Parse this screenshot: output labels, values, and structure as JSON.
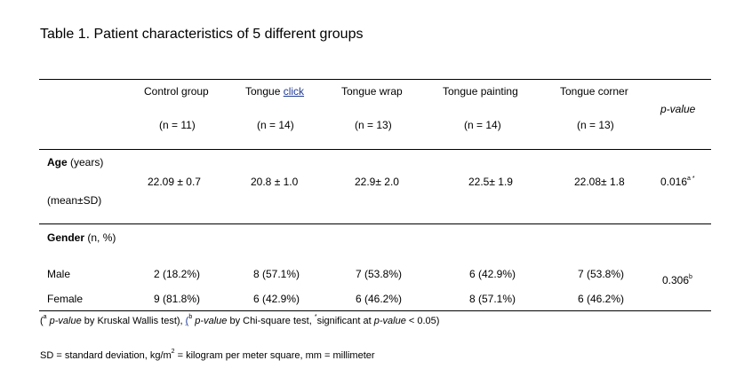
{
  "title": "Table 1. Patient characteristics of 5 different groups",
  "columns": [
    {
      "name_a": "Control group",
      "name_b": "",
      "n": "(n = 11)"
    },
    {
      "name_a": "Tongue ",
      "name_b": "click",
      "n": "(n = 14)"
    },
    {
      "name_a": "Tongue wrap",
      "name_b": "",
      "n": "(n = 13)"
    },
    {
      "name_a": "Tongue painting",
      "name_b": "",
      "n": "(n = 14)"
    },
    {
      "name_a": "Tongue corner",
      "name_b": "",
      "n": "(n = 13)"
    }
  ],
  "pvalue_header": "p-value",
  "age": {
    "label_bold": "Age",
    "label_rest": " (years)",
    "sublabel": "(mean±SD)",
    "values": [
      "22.09 ± 0.7",
      "20.8 ± 1.0",
      "22.9± 2.0",
      "22.5± 1.9",
      "22.08± 1.8"
    ],
    "pvalue": "0.016",
    "pvalue_sup": "a *"
  },
  "gender": {
    "label_bold": "Gender",
    "label_rest": " (n, %)",
    "rows": [
      {
        "label": "Male",
        "values": [
          "2 (18.2%)",
          "8 (57.1%)",
          "7 (53.8%)",
          "6 (42.9%)",
          "7 (53.8%)"
        ]
      },
      {
        "label": "Female",
        "values": [
          "9 (81.8%)",
          "6 (42.9%)",
          "6 (46.2%)",
          "8 (57.1%)",
          "6 (46.2%)"
        ]
      }
    ],
    "pvalue": "0.306",
    "pvalue_sup": "b"
  },
  "footnote": {
    "p1_open": "(",
    "p1_sup": "a",
    "p1_italic": " p-value",
    "p1_text": " by Kruskal Wallis test), ",
    "p2_link": "(",
    "p2_sup": "b",
    "p2_italic": " p-value",
    "p2_text": " by Chi-square test, ",
    "p3_sup": "*",
    "p3_text": "significant at ",
    "p3_italic": "p-value",
    "p3_end": " < 0.05)"
  },
  "abbreviations": {
    "a": "SD = standard deviation, kg/m",
    "sup": "2",
    "b": " = kilogram per meter square, mm = millimeter"
  }
}
